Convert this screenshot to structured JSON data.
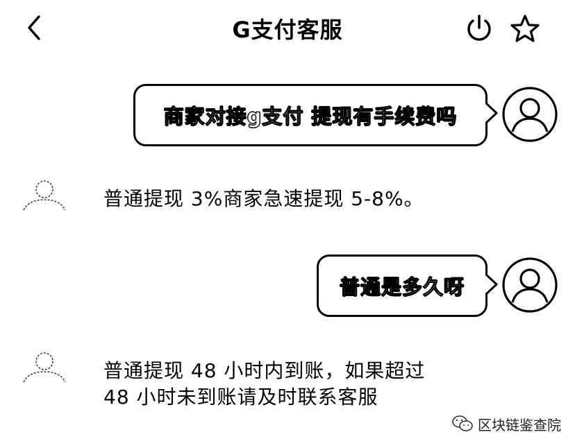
{
  "header": {
    "title": "G支付客服",
    "back_icon": "chevron-left-icon",
    "power_icon": "power-icon",
    "star_icon": "star-outline-icon"
  },
  "messages": [
    {
      "sender": "user",
      "text": "商家对接g支付 提现有手续费吗"
    },
    {
      "sender": "agent",
      "text": "普通提现 3%商家急速提现 5-8%。"
    },
    {
      "sender": "user",
      "text": "普通是多久呀"
    },
    {
      "sender": "agent",
      "line1": "普通提现 48 小时内到账，如果超过",
      "line2": "48 小时未到账请及时联系客服"
    }
  ],
  "watermark": {
    "icon": "wechat-icon",
    "text": "区块链鉴查院"
  }
}
